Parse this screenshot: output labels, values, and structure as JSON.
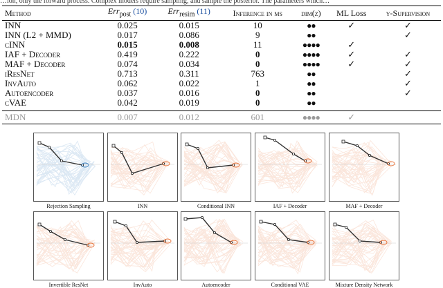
{
  "top_snippet": "…ion, only the forward process. Complex models require sampling, and sample the posterior. The parameters which…",
  "table": {
    "headers": {
      "method": "Method",
      "err_post": "Err",
      "err_post_sub": "post",
      "err_post_ref": "(10)",
      "err_resim": "Err",
      "err_resim_sub": "resim",
      "err_resim_ref": "(11)",
      "inference": "Inference in ms",
      "dimz": "dim(z)",
      "ml_loss": "ML Loss",
      "ysup": "y-Supervision"
    },
    "rows": [
      {
        "method": "INN",
        "err_post": "0.025",
        "err_resim": "0.015",
        "inference": "10",
        "dimz": "●●",
        "ml": "✓",
        "ysup": "✓"
      },
      {
        "method": "INN (L2 + MMD)",
        "err_post": "0.017",
        "err_resim": "0.086",
        "inference": "9",
        "dimz": "●●",
        "ml": "",
        "ysup": "✓"
      },
      {
        "method": "cINN",
        "err_post": "0.015",
        "err_resim": "0.008",
        "inference": "11",
        "dimz": "●●●●",
        "ml": "✓",
        "ysup": ""
      },
      {
        "method": "IAF + Decoder",
        "err_post": "0.419",
        "err_resim": "0.222",
        "inference": "0",
        "dimz": "●●●●",
        "ml": "✓",
        "ysup": "✓"
      },
      {
        "method": "MAF + Decoder",
        "err_post": "0.074",
        "err_resim": "0.034",
        "inference": "0",
        "dimz": "●●●●",
        "ml": "✓",
        "ysup": "✓"
      },
      {
        "method": "iResNet",
        "err_post": "0.713",
        "err_resim": "0.311",
        "inference": "763",
        "dimz": "●●",
        "ml": "",
        "ysup": "✓"
      },
      {
        "method": "InvAuto",
        "err_post": "0.062",
        "err_resim": "0.022",
        "inference": "1",
        "dimz": "●●",
        "ml": "",
        "ysup": "✓"
      },
      {
        "method": "Autoencoder",
        "err_post": "0.037",
        "err_resim": "0.016",
        "inference": "0",
        "dimz": "●●",
        "ml": "",
        "ysup": "✓"
      },
      {
        "method": "cVAE",
        "err_post": "0.042",
        "err_resim": "0.019",
        "inference": "0",
        "dimz": "●●",
        "ml": "",
        "ysup": ""
      }
    ],
    "mdn": {
      "method": "MDN",
      "err_post": "0.007",
      "err_resim": "0.012",
      "inference": "601",
      "dimz": "●●●●",
      "ml": "✓",
      "ysup": ""
    }
  },
  "figure": {
    "captions": [
      "Rejection Sampling",
      "INN",
      "Conditional INN",
      "IAF + Decoder",
      "MAF + Decoder",
      "Invertible ResNet",
      "InvAuto",
      "Autoencoder",
      "Conditional VAE",
      "Mixture Density Network"
    ],
    "colors": {
      "reference": "#3a7fbf",
      "method": "#e8743b",
      "arm": "#333333"
    }
  }
}
